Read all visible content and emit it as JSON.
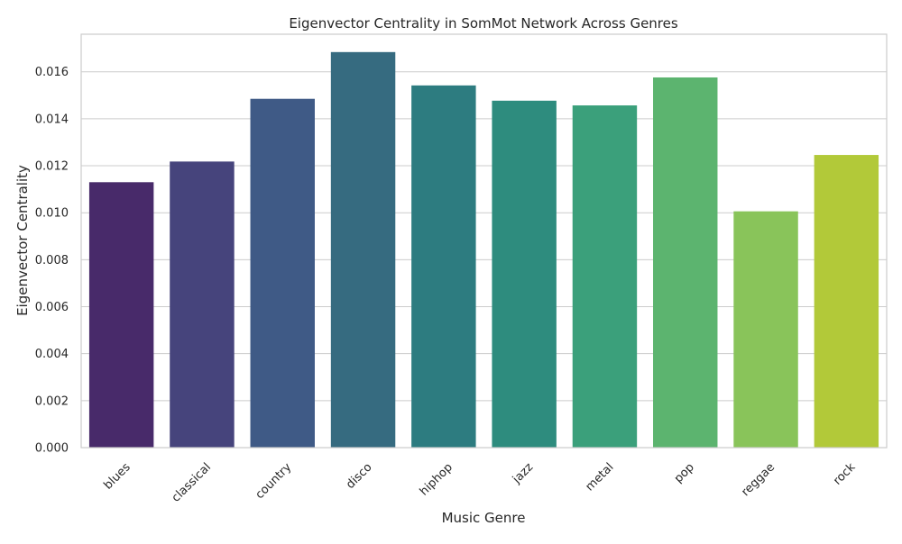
{
  "chart_data": {
    "type": "bar",
    "title": "Eigenvector Centrality in SomMot Network Across Genres",
    "xlabel": "Music Genre",
    "ylabel": "Eigenvector Centrality",
    "categories": [
      "blues",
      "classical",
      "country",
      "disco",
      "hiphop",
      "jazz",
      "metal",
      "pop",
      "reggae",
      "rock"
    ],
    "values": [
      0.0113,
      0.01218,
      0.01485,
      0.01684,
      0.01542,
      0.01477,
      0.01457,
      0.01576,
      0.01006,
      0.01246
    ],
    "ylim": [
      0,
      0.0176
    ],
    "yticks": [
      "0.000",
      "0.002",
      "0.004",
      "0.006",
      "0.008",
      "0.010",
      "0.012",
      "0.014",
      "0.016"
    ],
    "grid": "horizontal",
    "colors": [
      "#482a6a",
      "#46447c",
      "#3f5a86",
      "#366b80",
      "#2d7c80",
      "#2e8c7e",
      "#3ba07b",
      "#5cb46f",
      "#89c45a",
      "#b2c939"
    ]
  }
}
